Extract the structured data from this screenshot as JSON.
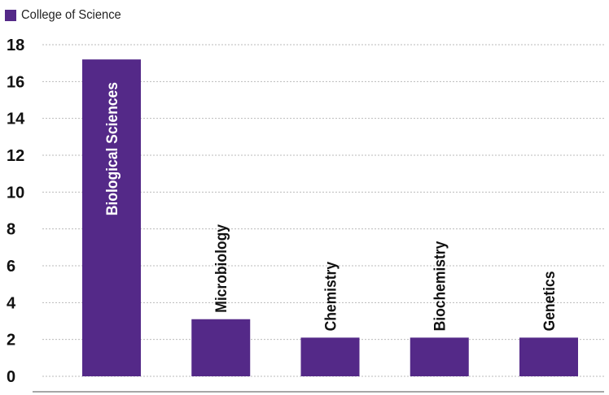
{
  "chart_data": {
    "type": "bar",
    "categories": [
      "Biological Sciences",
      "Microbiology",
      "Chemistry",
      "Biochemistry",
      "Genetics"
    ],
    "series": [
      {
        "name": "College of Science",
        "values": [
          17.2,
          3.1,
          2.1,
          2.1,
          2.1
        ],
        "color": "#542988"
      }
    ],
    "ylim": [
      0,
      18
    ],
    "yticks": [
      0,
      2,
      4,
      6,
      8,
      10,
      12,
      14,
      16,
      18
    ],
    "grid": true,
    "legend_position": "top-left",
    "title": "",
    "xlabel": "",
    "ylabel": ""
  },
  "colors": {
    "bar": "#542988",
    "label_inside": "#ffffff",
    "label_outside": "#111111",
    "grid": "#bbbbbb",
    "axis": "#888888"
  }
}
